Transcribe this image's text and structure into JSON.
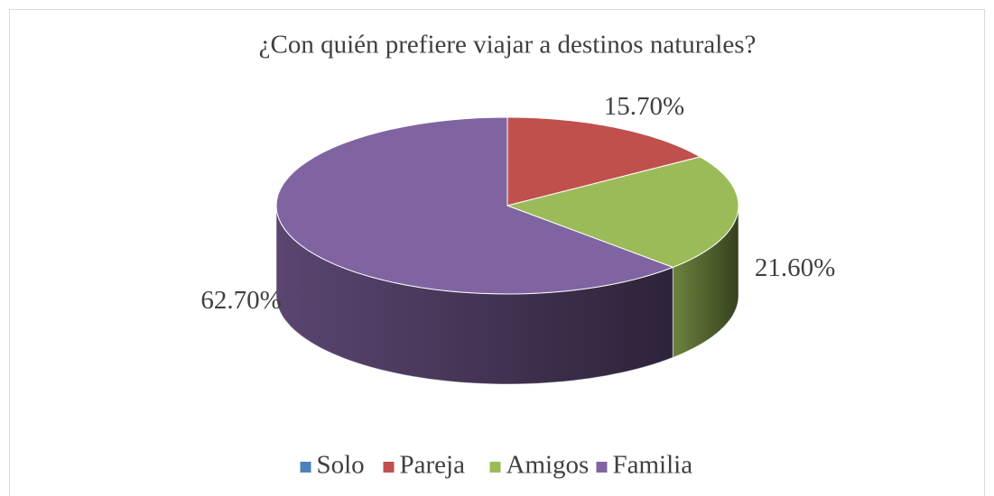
{
  "chart_data": {
    "type": "pie",
    "title": "¿Con quién prefiere viajar a destinos naturales?",
    "categories": [
      "Solo",
      "Pareja",
      "Amigos",
      "Familia"
    ],
    "values": [
      0,
      15.7,
      21.6,
      62.7
    ],
    "value_labels": [
      null,
      "15.70%",
      "21.60%",
      "62.70%"
    ],
    "colors": [
      "#4f81bd",
      "#c0504d",
      "#9bbb59",
      "#8064a2"
    ],
    "legend": "bottom"
  }
}
